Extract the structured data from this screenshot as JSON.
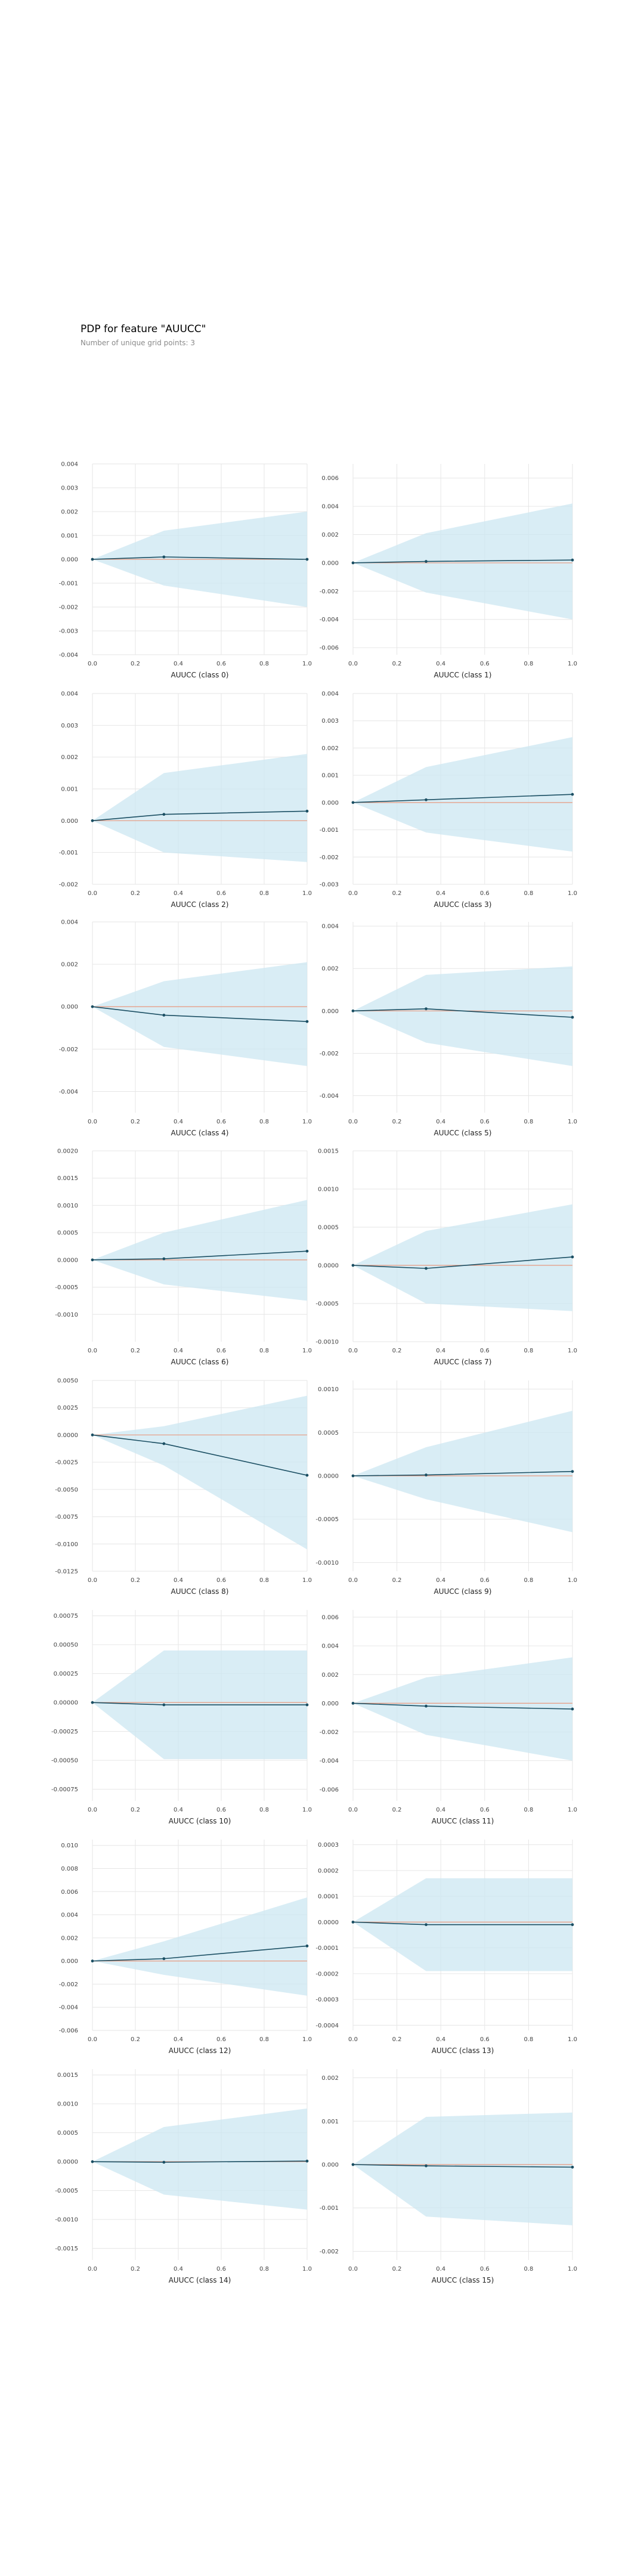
{
  "header": {
    "title": "PDP for feature \"AUUCC\"",
    "subtitle": "Number of unique grid points: 3"
  },
  "colors": {
    "band": "#cce7f1",
    "line": "#1b4f63",
    "reference": "#e8997f",
    "grid": "#e6e6e6",
    "axis": "#cccccc"
  },
  "chart_data": [
    {
      "type": "line",
      "xlabel": "AUUCC (class 0)",
      "x": [
        0,
        0.333,
        1
      ],
      "values": [
        0,
        0.0001,
        0
      ],
      "upper": [
        0,
        0.0012,
        0.002
      ],
      "lower": [
        0,
        -0.0011,
        -0.002
      ],
      "ylim": [
        -0.004,
        0.004
      ],
      "yticks": [
        "0.004",
        "0.003",
        "0.002",
        "0.001",
        "0.000",
        "-0.001",
        "-0.002",
        "-0.003",
        "-0.004"
      ],
      "ytick_values": [
        0.004,
        0.003,
        0.002,
        0.001,
        0,
        -0.001,
        -0.002,
        -0.003,
        -0.004
      ],
      "xticks": [
        "0.0",
        "0.2",
        "0.4",
        "0.6",
        "0.8",
        "1.0"
      ]
    },
    {
      "type": "line",
      "xlabel": "AUUCC (class 1)",
      "x": [
        0,
        0.333,
        1
      ],
      "values": [
        0,
        0.0001,
        0.0002
      ],
      "upper": [
        0,
        0.0021,
        0.0042
      ],
      "lower": [
        0,
        -0.0021,
        -0.004
      ],
      "ylim": [
        -0.0065,
        0.007
      ],
      "yticks": [
        "0.006",
        "0.004",
        "0.002",
        "0.000",
        "-0.002",
        "-0.004",
        "-0.006"
      ],
      "ytick_values": [
        0.006,
        0.004,
        0.002,
        0,
        -0.002,
        -0.004,
        -0.006
      ],
      "xticks": [
        "0.0",
        "0.2",
        "0.4",
        "0.6",
        "0.8",
        "1.0"
      ]
    },
    {
      "type": "line",
      "xlabel": "AUUCC (class 2)",
      "x": [
        0,
        0.333,
        1
      ],
      "values": [
        0,
        0.0002,
        0.0003
      ],
      "upper": [
        0,
        0.0015,
        0.0021
      ],
      "lower": [
        0,
        -0.001,
        -0.0013
      ],
      "ylim": [
        -0.002,
        0.004
      ],
      "yticks": [
        "0.004",
        "0.003",
        "0.002",
        "0.001",
        "0.000",
        "-0.001",
        "-0.002"
      ],
      "ytick_values": [
        0.004,
        0.003,
        0.002,
        0.001,
        0,
        -0.001,
        -0.002
      ],
      "xticks": [
        "0.0",
        "0.2",
        "0.4",
        "0.6",
        "0.8",
        "1.0"
      ]
    },
    {
      "type": "line",
      "xlabel": "AUUCC (class 3)",
      "x": [
        0,
        0.333,
        1
      ],
      "values": [
        0,
        0.0001,
        0.0003
      ],
      "upper": [
        0,
        0.0013,
        0.0024
      ],
      "lower": [
        0,
        -0.0011,
        -0.0018
      ],
      "ylim": [
        -0.003,
        0.004
      ],
      "yticks": [
        "0.004",
        "0.003",
        "0.002",
        "0.001",
        "0.000",
        "-0.001",
        "-0.002",
        "-0.003"
      ],
      "ytick_values": [
        0.004,
        0.003,
        0.002,
        0.001,
        0,
        -0.001,
        -0.002,
        -0.003
      ],
      "xticks": [
        "0.0",
        "0.2",
        "0.4",
        "0.6",
        "0.8",
        "1.0"
      ]
    },
    {
      "type": "line",
      "xlabel": "AUUCC (class 4)",
      "x": [
        0,
        0.333,
        1
      ],
      "values": [
        0,
        -0.0004,
        -0.0007
      ],
      "upper": [
        0,
        0.0012,
        0.0021
      ],
      "lower": [
        0,
        -0.0019,
        -0.0028
      ],
      "ylim": [
        -0.005,
        0.004
      ],
      "yticks": [
        "0.004",
        "0.002",
        "0.000",
        "-0.002",
        "-0.004"
      ],
      "ytick_values": [
        0.004,
        0.002,
        0,
        -0.002,
        -0.004
      ],
      "xticks": [
        "0.0",
        "0.2",
        "0.4",
        "0.6",
        "0.8",
        "1.0"
      ]
    },
    {
      "type": "line",
      "xlabel": "AUUCC (class 5)",
      "x": [
        0,
        0.333,
        1
      ],
      "values": [
        0,
        0.0001,
        -0.0003
      ],
      "upper": [
        0,
        0.0017,
        0.0021
      ],
      "lower": [
        0,
        -0.0015,
        -0.0026
      ],
      "ylim": [
        -0.0048,
        0.0042
      ],
      "yticks": [
        "0.004",
        "0.002",
        "0.000",
        "-0.002",
        "-0.004"
      ],
      "ytick_values": [
        0.004,
        0.002,
        0,
        -0.002,
        -0.004
      ],
      "xticks": [
        "0.0",
        "0.2",
        "0.4",
        "0.6",
        "0.8",
        "1.0"
      ]
    },
    {
      "type": "line",
      "xlabel": "AUUCC (class 6)",
      "x": [
        0,
        0.333,
        1
      ],
      "values": [
        0,
        2e-05,
        0.00016
      ],
      "upper": [
        0,
        0.0005,
        0.0011
      ],
      "lower": [
        0,
        -0.00045,
        -0.00075
      ],
      "ylim": [
        -0.0015,
        0.002
      ],
      "yticks": [
        "0.0020",
        "0.0015",
        "0.0010",
        "0.0005",
        "0.0000",
        "-0.0005",
        "-0.0010"
      ],
      "ytick_values": [
        0.002,
        0.0015,
        0.001,
        0.0005,
        0,
        -0.0005,
        -0.001
      ],
      "xticks": [
        "0.0",
        "0.2",
        "0.4",
        "0.6",
        "0.8",
        "1.0"
      ]
    },
    {
      "type": "line",
      "xlabel": "AUUCC (class 7)",
      "x": [
        0,
        0.333,
        1
      ],
      "values": [
        0,
        -4e-05,
        0.00011
      ],
      "upper": [
        0,
        0.00045,
        0.0008
      ],
      "lower": [
        0,
        -0.0005,
        -0.0006
      ],
      "ylim": [
        -0.001,
        0.0015
      ],
      "yticks": [
        "0.0015",
        "0.0010",
        "0.0005",
        "0.0000",
        "-0.0005",
        "-0.0010"
      ],
      "ytick_values": [
        0.0015,
        0.001,
        0.0005,
        0,
        -0.0005,
        -0.001
      ],
      "xticks": [
        "0.0",
        "0.2",
        "0.4",
        "0.6",
        "0.8",
        "1.0"
      ]
    },
    {
      "type": "line",
      "xlabel": "AUUCC (class 8)",
      "x": [
        0,
        0.333,
        1
      ],
      "values": [
        0,
        -0.0008,
        -0.0037
      ],
      "upper": [
        0,
        0.0008,
        0.0036
      ],
      "lower": [
        0,
        -0.0028,
        -0.0105
      ],
      "ylim": [
        -0.0125,
        0.005
      ],
      "yticks": [
        "0.0050",
        "0.0025",
        "0.0000",
        "-0.0025",
        "-0.0050",
        "-0.0075",
        "-0.0100",
        "-0.0125"
      ],
      "ytick_values": [
        0.005,
        0.0025,
        0,
        -0.0025,
        -0.005,
        -0.0075,
        -0.01,
        -0.0125
      ],
      "xticks": [
        "0.0",
        "0.2",
        "0.4",
        "0.6",
        "0.8",
        "1.0"
      ]
    },
    {
      "type": "line",
      "xlabel": "AUUCC (class 9)",
      "x": [
        0,
        0.333,
        1
      ],
      "values": [
        0,
        1e-05,
        5e-05
      ],
      "upper": [
        0,
        0.00033,
        0.00075
      ],
      "lower": [
        0,
        -0.00027,
        -0.00065
      ],
      "ylim": [
        -0.0011,
        0.0011
      ],
      "yticks": [
        "0.0010",
        "0.0005",
        "0.0000",
        "-0.0005",
        "-0.0010"
      ],
      "ytick_values": [
        0.001,
        0.0005,
        0,
        -0.0005,
        -0.001
      ],
      "xticks": [
        "0.0",
        "0.2",
        "0.4",
        "0.6",
        "0.8",
        "1.0"
      ]
    },
    {
      "type": "line",
      "xlabel": "AUUCC (class 10)",
      "x": [
        0,
        0.333,
        1
      ],
      "values": [
        0,
        -2e-05,
        -2e-05
      ],
      "upper": [
        0,
        0.00045,
        0.00045
      ],
      "lower": [
        0,
        -0.00049,
        -0.00049
      ],
      "ylim": [
        -0.00085,
        0.0008
      ],
      "yticks": [
        "0.00075",
        "0.00050",
        "0.00025",
        "0.00000",
        "-0.00025",
        "-0.00050",
        "-0.00075"
      ],
      "ytick_values": [
        0.00075,
        0.0005,
        0.00025,
        0,
        -0.00025,
        -0.0005,
        -0.00075
      ],
      "xticks": [
        "0.0",
        "0.2",
        "0.4",
        "0.6",
        "0.8",
        "1.0"
      ]
    },
    {
      "type": "line",
      "xlabel": "AUUCC (class 11)",
      "x": [
        0,
        0.333,
        1
      ],
      "values": [
        0,
        -0.0002,
        -0.0004
      ],
      "upper": [
        0,
        0.0018,
        0.0032
      ],
      "lower": [
        0,
        -0.0022,
        -0.004
      ],
      "ylim": [
        -0.0068,
        0.0065
      ],
      "yticks": [
        "0.006",
        "0.004",
        "0.002",
        "0.000",
        "-0.002",
        "-0.004",
        "-0.006"
      ],
      "ytick_values": [
        0.006,
        0.004,
        0.002,
        0,
        -0.002,
        -0.004,
        -0.006
      ],
      "xticks": [
        "0.0",
        "0.2",
        "0.4",
        "0.6",
        "0.8",
        "1.0"
      ]
    },
    {
      "type": "line",
      "xlabel": "AUUCC (class 12)",
      "x": [
        0,
        0.333,
        1
      ],
      "values": [
        0,
        0.0002,
        0.0013
      ],
      "upper": [
        0,
        0.0017,
        0.0055
      ],
      "lower": [
        0,
        -0.0012,
        -0.003
      ],
      "ylim": [
        -0.006,
        0.0105
      ],
      "yticks": [
        "0.010",
        "0.008",
        "0.006",
        "0.004",
        "0.002",
        "0.000",
        "-0.002",
        "-0.004",
        "-0.006"
      ],
      "ytick_values": [
        0.01,
        0.008,
        0.006,
        0.004,
        0.002,
        0,
        -0.002,
        -0.004,
        -0.006
      ],
      "xticks": [
        "0.0",
        "0.2",
        "0.4",
        "0.6",
        "0.8",
        "1.0"
      ]
    },
    {
      "type": "line",
      "xlabel": "AUUCC (class 13)",
      "x": [
        0,
        0.333,
        1
      ],
      "values": [
        0,
        -1e-05,
        -1e-05
      ],
      "upper": [
        0,
        0.00017,
        0.00017
      ],
      "lower": [
        0,
        -0.00019,
        -0.00019
      ],
      "ylim": [
        -0.00042,
        0.00032
      ],
      "yticks": [
        "0.0003",
        "0.0002",
        "0.0001",
        "0.0000",
        "-0.0001",
        "-0.0002",
        "-0.0003",
        "-0.0004"
      ],
      "ytick_values": [
        0.0003,
        0.0002,
        0.0001,
        0,
        -0.0001,
        -0.0002,
        -0.0003,
        -0.0004
      ],
      "xticks": [
        "0.0",
        "0.2",
        "0.4",
        "0.6",
        "0.8",
        "1.0"
      ]
    },
    {
      "type": "line",
      "xlabel": "AUUCC (class 14)",
      "x": [
        0,
        0.333,
        1
      ],
      "values": [
        0,
        -1e-05,
        1e-05
      ],
      "upper": [
        0,
        0.0006,
        0.00092
      ],
      "lower": [
        0,
        -0.00057,
        -0.00083
      ],
      "ylim": [
        -0.0017,
        0.0016
      ],
      "yticks": [
        "0.0015",
        "0.0010",
        "0.0005",
        "0.0000",
        "-0.0005",
        "-0.0010",
        "-0.0015"
      ],
      "ytick_values": [
        0.0015,
        0.001,
        0.0005,
        0,
        -0.0005,
        -0.001,
        -0.0015
      ],
      "xticks": [
        "0.0",
        "0.2",
        "0.4",
        "0.6",
        "0.8",
        "1.0"
      ]
    },
    {
      "type": "line",
      "xlabel": "AUUCC (class 15)",
      "x": [
        0,
        0.333,
        1
      ],
      "values": [
        0,
        -3e-05,
        -6e-05
      ],
      "upper": [
        0,
        0.0011,
        0.0012
      ],
      "lower": [
        0,
        -0.0012,
        -0.0014
      ],
      "ylim": [
        -0.0022,
        0.0022
      ],
      "yticks": [
        "0.002",
        "0.001",
        "0.000",
        "-0.001",
        "-0.002"
      ],
      "ytick_values": [
        0.002,
        0.001,
        0,
        -0.001,
        -0.002
      ],
      "xticks": [
        "0.0",
        "0.2",
        "0.4",
        "0.6",
        "0.8",
        "1.0"
      ]
    }
  ]
}
